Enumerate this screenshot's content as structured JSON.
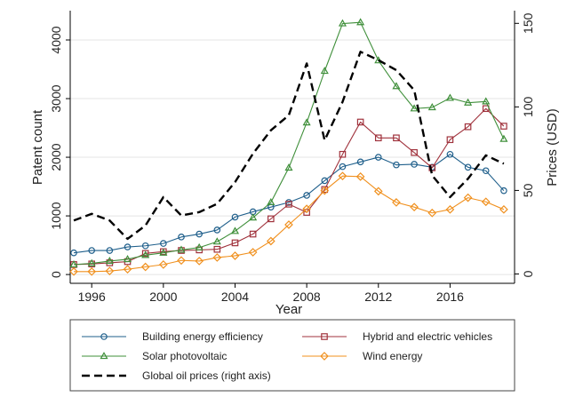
{
  "chart_data": {
    "type": "line",
    "title": "",
    "xlabel": "Year",
    "ylabel": "Patent count",
    "y2label": "Prices (USD)",
    "xlim": [
      1994.8,
      2019.6
    ],
    "ylim": [
      -150,
      4500
    ],
    "y2lim": [
      -5.6,
      157.6
    ],
    "x_ticks": [
      1996,
      2000,
      2004,
      2008,
      2012,
      2016
    ],
    "y_ticks": [
      0,
      1000,
      2000,
      3000,
      4000
    ],
    "y2_ticks": [
      0,
      50,
      100,
      150
    ],
    "legend_position": "bottom",
    "x": [
      1995,
      1996,
      1997,
      1998,
      1999,
      2000,
      2001,
      2002,
      2003,
      2004,
      2005,
      2006,
      2007,
      2008,
      2009,
      2010,
      2011,
      2012,
      2013,
      2014,
      2015,
      2016,
      2017,
      2018,
      2019
    ],
    "series": [
      {
        "name": "Building energy efficiency",
        "axis": "left",
        "color": "#1f5f8b",
        "marker": "circle",
        "values": [
          370,
          410,
          410,
          470,
          490,
          530,
          640,
          690,
          760,
          980,
          1070,
          1150,
          1230,
          1350,
          1600,
          1840,
          1920,
          2000,
          1870,
          1880,
          1830,
          2050,
          1830,
          1770,
          1430
        ]
      },
      {
        "name": "Hybrid and electric vehicles",
        "axis": "left",
        "color": "#a0323c",
        "marker": "square",
        "values": [
          170,
          180,
          200,
          220,
          360,
          390,
          410,
          420,
          430,
          540,
          690,
          950,
          1200,
          1060,
          1450,
          2050,
          2600,
          2330,
          2330,
          2080,
          1820,
          2300,
          2520,
          2830,
          2530
        ]
      },
      {
        "name": "Solar photovoltaic",
        "axis": "left",
        "color": "#3f8f3a",
        "marker": "triangle",
        "values": [
          170,
          190,
          230,
          260,
          330,
          370,
          420,
          460,
          560,
          740,
          970,
          1230,
          1820,
          2590,
          3470,
          4280,
          4300,
          3650,
          3210,
          2830,
          2850,
          3010,
          2930,
          2950,
          2310
        ]
      },
      {
        "name": "Wind energy",
        "axis": "left",
        "color": "#f0901e",
        "marker": "diamond",
        "values": [
          50,
          50,
          60,
          90,
          130,
          170,
          240,
          230,
          290,
          320,
          380,
          570,
          850,
          1120,
          1430,
          1680,
          1670,
          1420,
          1230,
          1150,
          1050,
          1110,
          1310,
          1240,
          1110
        ]
      },
      {
        "name": "Global oil prices (right axis)",
        "axis": "right",
        "color": "#000000",
        "marker": "none",
        "dashed": true,
        "values": [
          32,
          36,
          32,
          21,
          29,
          46,
          35,
          37,
          42,
          55,
          72,
          86,
          95,
          126,
          80,
          103,
          133,
          128,
          122,
          110,
          59,
          46,
          57,
          71,
          66
        ]
      }
    ]
  }
}
